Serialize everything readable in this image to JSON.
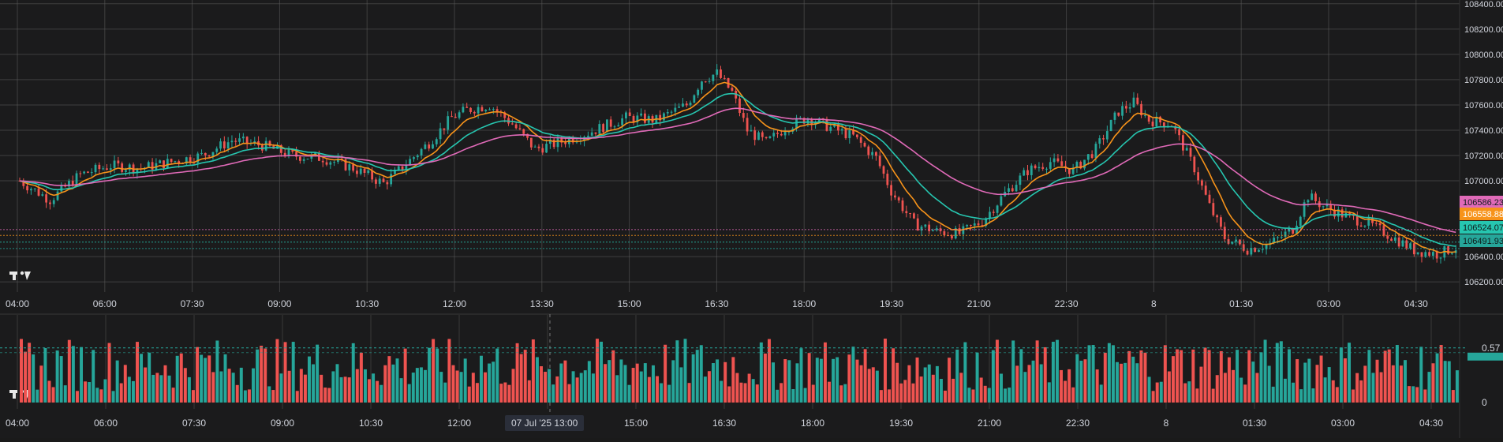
{
  "colors": {
    "background": "#1b1b1c",
    "grid": "#5d5d5d",
    "text": "#d1d4dc",
    "up": "#26a69a",
    "down": "#ef5350",
    "ma_fast": "#f7931a",
    "ma_mid": "#26c6b0",
    "ma_slow": "#e06ab8"
  },
  "logo": "TV",
  "crosshair_label": "07 Jul '25   13:00",
  "chart_data": [
    {
      "type": "candlestick",
      "x_tick_labels": [
        "04:00",
        "06:00",
        "07:30",
        "09:00",
        "10:30",
        "12:00",
        "13:30",
        "15:00",
        "16:30",
        "18:00",
        "19:30",
        "21:00",
        "22:30",
        "8",
        "01:30",
        "03:00",
        "04:30"
      ],
      "y_tick_labels": [
        "106200.00",
        "106400.00",
        "107000.00",
        "107200.00",
        "107400.00",
        "107600.00",
        "107800.00",
        "108000.00",
        "108200.00",
        "108400.00"
      ],
      "ylim": [
        106120,
        108430
      ],
      "price_tags": [
        {
          "label": "106586.23",
          "value": 106586.23,
          "color": "#e06ab8"
        },
        {
          "label": "106558.88",
          "value": 106558.88,
          "color": "#f7931a"
        },
        {
          "label": "106524.07",
          "value": 106524.07,
          "color": "#26c6b0"
        },
        {
          "label": "106491.93",
          "value": 106491.93,
          "color": "#26a69a"
        }
      ],
      "close_path": [
        [
          0,
          107000
        ],
        [
          8,
          106850
        ],
        [
          16,
          107050
        ],
        [
          24,
          107120
        ],
        [
          32,
          107100
        ],
        [
          40,
          107150
        ],
        [
          48,
          107200
        ],
        [
          56,
          107320
        ],
        [
          64,
          107280
        ],
        [
          72,
          107200
        ],
        [
          80,
          107180
        ],
        [
          88,
          107100
        ],
        [
          96,
          106980
        ],
        [
          100,
          107080
        ],
        [
          108,
          107300
        ],
        [
          114,
          107500
        ],
        [
          118,
          107560
        ],
        [
          124,
          107600
        ],
        [
          130,
          107450
        ],
        [
          136,
          107250
        ],
        [
          142,
          107300
        ],
        [
          150,
          107380
        ],
        [
          160,
          107500
        ],
        [
          168,
          107480
        ],
        [
          176,
          107600
        ],
        [
          180,
          107800
        ],
        [
          184,
          107850
        ],
        [
          188,
          107700
        ],
        [
          192,
          107400
        ],
        [
          197,
          107300
        ],
        [
          202,
          107420
        ],
        [
          208,
          107500
        ],
        [
          214,
          107420
        ],
        [
          220,
          107350
        ],
        [
          226,
          107180
        ],
        [
          230,
          106920
        ],
        [
          236,
          106660
        ],
        [
          242,
          106600
        ],
        [
          248,
          106580
        ],
        [
          254,
          106680
        ],
        [
          260,
          106900
        ],
        [
          266,
          107080
        ],
        [
          272,
          107150
        ],
        [
          278,
          107080
        ],
        [
          284,
          107250
        ],
        [
          290,
          107550
        ],
        [
          294,
          107620
        ],
        [
          298,
          107480
        ],
        [
          304,
          107450
        ],
        [
          310,
          107100
        ],
        [
          314,
          106800
        ],
        [
          318,
          106550
        ],
        [
          324,
          106460
        ],
        [
          330,
          106500
        ],
        [
          336,
          106620
        ],
        [
          340,
          106880
        ],
        [
          344,
          106800
        ],
        [
          350,
          106720
        ],
        [
          356,
          106660
        ],
        [
          362,
          106560
        ],
        [
          368,
          106450
        ],
        [
          374,
          106420
        ],
        [
          380,
          106480
        ]
      ],
      "x_range": [
        0,
        380
      ],
      "ma_fast_values": "EMA 9 (orange)",
      "ma_mid_values": "EMA 21 (teal)",
      "ma_slow_values": "EMA 50 (pink)"
    },
    {
      "type": "bar",
      "y_tick_labels": [
        "0.57",
        "0"
      ],
      "ylim": [
        0,
        0.7
      ],
      "bar_count": 360
    }
  ]
}
